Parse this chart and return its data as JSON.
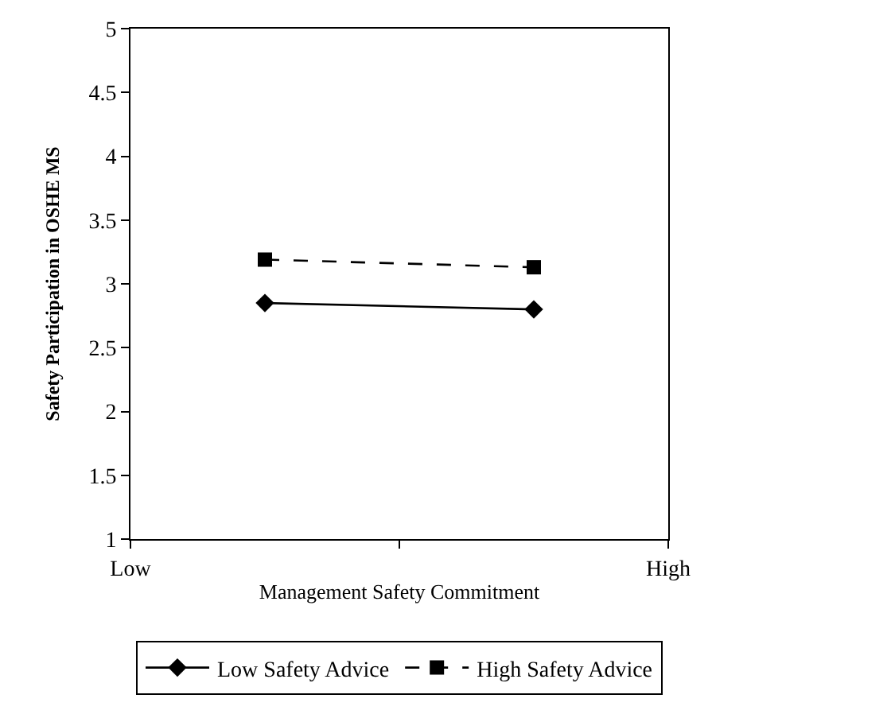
{
  "chart_data": {
    "type": "line",
    "xlabel": "Management Safety Commitment",
    "ylabel": "Safety Participation in OSHE MS",
    "categories": [
      "Low",
      null,
      null,
      null,
      "High"
    ],
    "ylim": [
      1,
      5
    ],
    "yticks": [
      1,
      1.5,
      2,
      2.5,
      3,
      3.5,
      4,
      4.5,
      5
    ],
    "legend": "bottom",
    "series": [
      {
        "name": "Low Safety Advice",
        "color": "#000000",
        "values": [
          null,
          2.85,
          null,
          2.8,
          null
        ],
        "marker": "diamond",
        "line_style": "solid"
      },
      {
        "name": "High Safety Advice",
        "color": "#000000",
        "values": [
          null,
          3.19,
          null,
          3.13,
          null
        ],
        "marker": "square",
        "line_style": "dashed"
      }
    ]
  }
}
